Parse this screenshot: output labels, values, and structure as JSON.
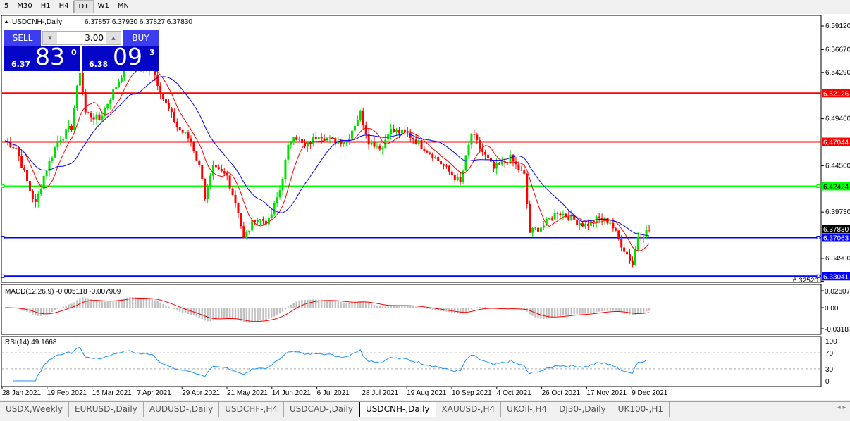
{
  "timeframes": [
    {
      "label": "5"
    },
    {
      "label": "M30"
    },
    {
      "label": "H1"
    },
    {
      "label": "H4"
    },
    {
      "label": "D1",
      "active": true
    },
    {
      "label": "W1"
    },
    {
      "label": "MN"
    }
  ],
  "chart_header": {
    "symbol": "USDCNH-,Daily",
    "ohlc": "6.37857 6.37930 6.37827 6.37830"
  },
  "trade_panel": {
    "sell_label": "SELL",
    "buy_label": "BUY",
    "lot": "3.00",
    "sell_prefix": "6.37",
    "sell_big": "83",
    "sell_sup": "0",
    "buy_prefix": "6.38",
    "buy_big": "09",
    "buy_sup": "3"
  },
  "colors": {
    "bull": "#00e000",
    "bear": "#ff0000",
    "fast_ma": "#ff0000",
    "slow_ma": "#0000ff",
    "macd_hist": "#c0c0c0",
    "macd_signal": "#ff0000",
    "rsi": "#1e90ff"
  },
  "price_axis": [
    "6.59120",
    "6.56670",
    "6.54290",
    "6.49460",
    "6.44560",
    "6.39730",
    "6.34900",
    "6.32520"
  ],
  "current_price": "6.37830",
  "hlines": [
    {
      "price": 6.52126,
      "label": "6.52126",
      "color": "#ff0000"
    },
    {
      "price": 6.47044,
      "label": "6.47044",
      "color": "#ff0000"
    },
    {
      "price": 6.42424,
      "label": "6.42424",
      "color": "#00ff00"
    },
    {
      "price": 6.37063,
      "label": "6.37063",
      "color": "#0000ff"
    },
    {
      "price": 6.33041,
      "label": "6.33041",
      "color": "#0000ff"
    }
  ],
  "chart_data": {
    "type": "candlestick",
    "price_path": [
      [
        0,
        6.4716
      ],
      [
        4,
        6.4642
      ],
      [
        9,
        6.4202
      ],
      [
        11,
        6.4055
      ],
      [
        14,
        6.4349
      ],
      [
        19,
        6.4716
      ],
      [
        24,
        6.4862
      ],
      [
        27,
        6.545
      ],
      [
        29,
        6.5009
      ],
      [
        34,
        6.4936
      ],
      [
        39,
        6.5229
      ],
      [
        44,
        6.5523
      ],
      [
        49,
        6.545
      ],
      [
        53,
        6.5486
      ],
      [
        57,
        6.5156
      ],
      [
        62,
        6.4862
      ],
      [
        67,
        6.4716
      ],
      [
        71,
        6.4349
      ],
      [
        72,
        6.4128
      ],
      [
        75,
        6.4422
      ],
      [
        80,
        6.4349
      ],
      [
        84,
        6.3982
      ],
      [
        86,
        6.3688
      ],
      [
        90,
        6.3908
      ],
      [
        95,
        6.3871
      ],
      [
        99,
        6.4202
      ],
      [
        102,
        6.4642
      ],
      [
        104,
        6.4789
      ],
      [
        108,
        6.4642
      ],
      [
        113,
        6.4789
      ],
      [
        118,
        6.4716
      ],
      [
        123,
        6.4716
      ],
      [
        128,
        6.5009
      ],
      [
        131,
        6.4716
      ],
      [
        136,
        6.4642
      ],
      [
        138,
        6.4826
      ],
      [
        145,
        6.4789
      ],
      [
        148,
        6.4716
      ],
      [
        154,
        6.4569
      ],
      [
        159,
        6.4422
      ],
      [
        164,
        6.4275
      ],
      [
        168,
        6.4789
      ],
      [
        171,
        6.4642
      ],
      [
        176,
        6.4422
      ],
      [
        182,
        6.4532
      ],
      [
        187,
        6.4349
      ],
      [
        189,
        6.3761
      ],
      [
        194,
        6.3835
      ],
      [
        199,
        6.3982
      ],
      [
        204,
        6.3908
      ],
      [
        209,
        6.3835
      ],
      [
        214,
        6.3908
      ],
      [
        218,
        6.3871
      ],
      [
        221,
        6.3688
      ],
      [
        226,
        6.3431
      ],
      [
        228,
        6.3725
      ],
      [
        232,
        6.3783
      ]
    ],
    "x_labels": [
      "28 Jan 2021",
      "19 Feb 2021",
      "15 Mar 2021",
      "7 Apr 2021",
      "29 Apr 2021",
      "21 May 2021",
      "14 Jun 2021",
      "6 Jul 2021",
      "28 Jul 2021",
      "19 Aug 2021",
      "10 Sep 2021",
      "4 Oct 2021",
      "26 Oct 2021",
      "17 Nov 2021",
      "9 Dec 2021"
    ],
    "ylim": [
      6.3252,
      6.5912
    ]
  },
  "macd": {
    "label": "MACD(12,26,9) -0.005118 -0.007909",
    "axis": [
      "0.02607",
      "0.00",
      "-0.03187"
    ]
  },
  "rsi": {
    "label": "RSI(14) 49.1668",
    "axis": [
      "100",
      "70",
      "30",
      "0"
    ]
  },
  "tabs": [
    {
      "label": "USDX,Weekly"
    },
    {
      "label": "EURUSD-,Daily"
    },
    {
      "label": "AUDUSD-,Daily"
    },
    {
      "label": "USDCHF-,H4"
    },
    {
      "label": "USDCAD-,Daily"
    },
    {
      "label": "USDCNH-,Daily",
      "active": true
    },
    {
      "label": "XAUUSD-,H4"
    },
    {
      "label": "UKOil-,H4"
    },
    {
      "label": "DJ30-,Daily"
    },
    {
      "label": "UK100-,H1"
    }
  ],
  "tab_nav": "◂ ▸"
}
